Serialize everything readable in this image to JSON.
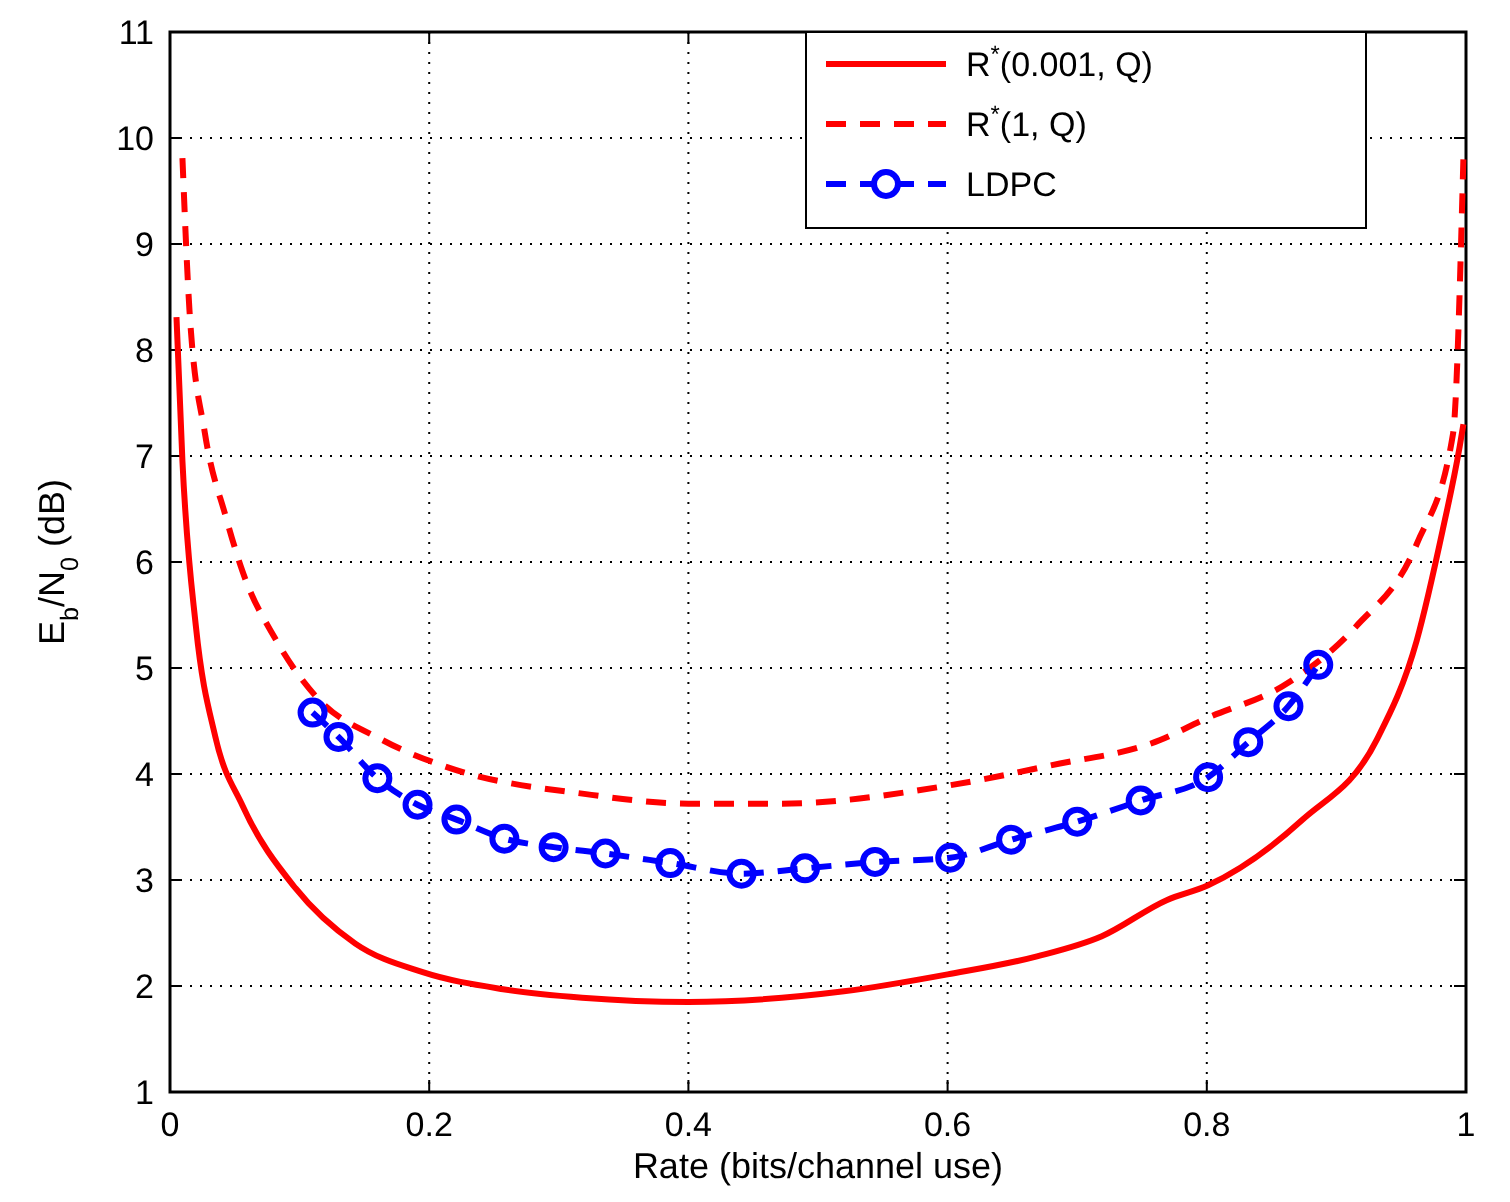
{
  "chart_data": {
    "type": "line",
    "xlabel": "Rate (bits/channel use)",
    "ylabel": "E$_{b}$/N$_{0}$ (dB)",
    "xlim": [
      0,
      1
    ],
    "xticks": [
      0,
      0.2,
      0.4,
      0.6,
      0.8,
      1
    ],
    "ylim": [
      1,
      11
    ],
    "yticks": [
      1,
      2,
      3,
      4,
      5,
      6,
      7,
      8,
      9,
      10,
      11
    ],
    "grid": true,
    "legend": "top right",
    "series": [
      {
        "name": "R$^{*}$(0.001, Q)",
        "color": "#ff0000",
        "line_style": "solid",
        "marker": "none",
        "x": [
          0.005,
          0.0096,
          0.02,
          0.035,
          0.056,
          0.097,
          0.143,
          0.195,
          0.257,
          0.318,
          0.4,
          0.52,
          0.6,
          0.669,
          0.719,
          0.769,
          0.801,
          0.874,
          0.931,
          0.962,
          0.982,
          0.995,
          0.998
        ],
        "values": [
          8.31,
          6.95,
          5.39,
          4.35,
          3.7,
          2.92,
          2.4,
          2.13,
          1.97,
          1.89,
          1.85,
          1.95,
          2.11,
          2.28,
          2.47,
          2.81,
          2.95,
          3.57,
          4.32,
          5.26,
          6.3,
          7.08,
          7.3
        ]
      },
      {
        "name": "R$^{*}$(1, Q)",
        "color": "#ff0000",
        "line_style": "dashed",
        "marker": "none",
        "x": [
          0.0096,
          0.015,
          0.027,
          0.043,
          0.056,
          0.082,
          0.112,
          0.164,
          0.215,
          0.321,
          0.4,
          0.47,
          0.6,
          0.679,
          0.764,
          0.797,
          0.864,
          0.915,
          0.962,
          0.99,
          0.998
        ],
        "values": [
          9.81,
          8.38,
          7.21,
          6.43,
          5.91,
          5.26,
          4.74,
          4.32,
          4.06,
          3.81,
          3.72,
          3.72,
          3.89,
          4.08,
          4.32,
          4.51,
          4.87,
          5.39,
          6.17,
          7.21,
          9.81
        ]
      },
      {
        "name": "LDPC",
        "color": "#0000ff",
        "line_style": "dashed",
        "marker": "circle",
        "x": [
          0.11,
          0.13,
          0.16,
          0.191,
          0.221,
          0.258,
          0.296,
          0.336,
          0.386,
          0.441,
          0.49,
          0.544,
          0.602,
          0.649,
          0.7,
          0.749,
          0.801,
          0.832,
          0.863,
          0.886
        ],
        "values": [
          4.58,
          4.35,
          3.96,
          3.71,
          3.57,
          3.39,
          3.31,
          3.25,
          3.16,
          3.06,
          3.11,
          3.17,
          3.21,
          3.38,
          3.55,
          3.75,
          3.97,
          4.3,
          4.64,
          5.03
        ]
      }
    ]
  }
}
